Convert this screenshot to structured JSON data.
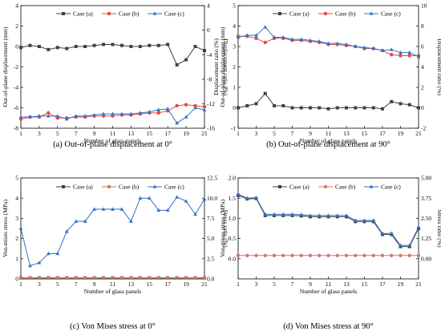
{
  "colors": {
    "case_a": "#404040",
    "case_b": "#e8473a",
    "case_c": "#3572c6",
    "case_b_panel_c": "#c8745a",
    "case_b_panel_d": "#d9776a"
  },
  "chart_data": [
    {
      "type": "line",
      "caption": "(a) Out-of-plane displacement at 0°",
      "xlabel": "Number of glass panels",
      "ylabel": "Out-of-plane displacement (mm)",
      "y2label": "Displacement ratio (%)",
      "xlim": [
        1,
        21
      ],
      "xticks": [
        "1",
        "3",
        "5",
        "7",
        "9",
        "11",
        "13",
        "15",
        "17",
        "19",
        "21"
      ],
      "ylim": [
        -8,
        4
      ],
      "yticks": [
        "-8",
        "-6",
        "-4",
        "-2",
        "0",
        "2",
        "4"
      ],
      "y2lim": [
        -16,
        4
      ],
      "y2ticks": [
        "-16",
        "-12",
        "-8",
        "-4",
        "0",
        "4"
      ],
      "legend": [
        "Case (a)",
        "Case (b)",
        "Case (c)"
      ],
      "x": [
        1,
        2,
        3,
        4,
        5,
        6,
        7,
        8,
        9,
        10,
        11,
        12,
        13,
        14,
        15,
        16,
        17,
        18,
        19,
        20,
        21
      ],
      "series": [
        {
          "name": "Case (a)",
          "values": [
            -0.1,
            0.1,
            0.0,
            -0.3,
            -0.1,
            -0.2,
            0.0,
            0.0,
            0.1,
            0.2,
            0.2,
            0.1,
            0.0,
            0.0,
            0.1,
            0.1,
            0.2,
            -1.8,
            -1.3,
            0.0,
            -0.4
          ]
        },
        {
          "name": "Case (b)",
          "values": [
            -7.1,
            -6.9,
            -6.9,
            -6.5,
            -7.0,
            -7.0,
            -6.9,
            -6.9,
            -6.8,
            -6.8,
            -6.8,
            -6.7,
            -6.7,
            -6.6,
            -6.5,
            -6.5,
            -6.3,
            -5.8,
            -5.7,
            -5.8,
            -5.9
          ]
        },
        {
          "name": "Case (c)",
          "values": [
            -6.9,
            -6.9,
            -6.8,
            -6.8,
            -6.8,
            -7.1,
            -6.8,
            -6.8,
            -6.7,
            -6.6,
            -6.6,
            -6.6,
            -6.6,
            -6.5,
            -6.4,
            -6.2,
            -6.1,
            -7.5,
            -6.9,
            -6.0,
            -6.2
          ]
        }
      ]
    },
    {
      "type": "line",
      "caption": "(b) Out-of-plane displacement at 90°",
      "xlabel": "Number of glass panels",
      "ylabel": "Displacement ratio (%)\nOut-of-plane displacement (mm)",
      "y2label": "Displacement ratio (%)",
      "xlim": [
        1,
        21
      ],
      "xticks": [
        "1",
        "3",
        "5",
        "7",
        "9",
        "11",
        "13",
        "15",
        "17",
        "19",
        "21"
      ],
      "ylim": [
        -1,
        5
      ],
      "yticks": [
        "-1",
        "0",
        "1",
        "2",
        "3",
        "4",
        "5"
      ],
      "y2lim": [
        -2,
        10
      ],
      "y2ticks": [
        "-2",
        "0",
        "2",
        "4",
        "6",
        "8",
        "10"
      ],
      "legend": [
        "Case (a)",
        "Case (b)",
        "Case (c)"
      ],
      "x": [
        1,
        2,
        3,
        4,
        5,
        6,
        7,
        8,
        9,
        10,
        11,
        12,
        13,
        14,
        15,
        16,
        17,
        18,
        19,
        20,
        21
      ],
      "series": [
        {
          "name": "Case (a)",
          "values": [
            0.0,
            0.1,
            0.2,
            0.7,
            0.1,
            0.1,
            0.0,
            0.0,
            0.0,
            0.0,
            -0.05,
            0.0,
            0.0,
            0.0,
            0.0,
            0.0,
            -0.05,
            0.3,
            0.2,
            0.15,
            0.0
          ]
        },
        {
          "name": "Case (b)",
          "values": [
            3.5,
            3.5,
            3.4,
            3.2,
            3.4,
            3.4,
            3.3,
            3.3,
            3.25,
            3.2,
            3.1,
            3.1,
            3.05,
            3.0,
            2.9,
            2.9,
            2.8,
            2.6,
            2.55,
            2.55,
            2.55
          ]
        },
        {
          "name": "Case (c)",
          "values": [
            3.45,
            3.55,
            3.55,
            3.95,
            3.45,
            3.45,
            3.35,
            3.35,
            3.3,
            3.25,
            3.15,
            3.15,
            3.1,
            3.0,
            2.95,
            2.9,
            2.8,
            2.85,
            2.7,
            2.7,
            2.5
          ]
        }
      ]
    },
    {
      "type": "line",
      "caption": "(c) Von Mises stress at 0°",
      "xlabel": "Number of glass panels",
      "ylabel": "Von-mises stress (MPa)",
      "y2label": "Stress ratio (%)",
      "xlim": [
        1,
        21
      ],
      "xticks": [
        "1",
        "3",
        "5",
        "7",
        "9",
        "11",
        "13",
        "15",
        "17",
        "19",
        "21"
      ],
      "ylim": [
        0,
        5
      ],
      "yticks": [
        "0",
        "1",
        "2",
        "3",
        "4",
        "5"
      ],
      "y2lim": [
        0.0,
        12.5
      ],
      "y2ticks": [
        "0.0",
        "2.5",
        "5.0",
        "7.5",
        "10.0",
        "12.5"
      ],
      "legend": [
        "Case (a)",
        "Case (b)",
        "Case (c)"
      ],
      "x": [
        1,
        2,
        3,
        4,
        5,
        6,
        7,
        8,
        9,
        10,
        11,
        12,
        13,
        14,
        15,
        16,
        17,
        18,
        19,
        20,
        21
      ],
      "series": [
        {
          "name": "Case (a)",
          "values": [
            0.05,
            0.05,
            0.05,
            0.05,
            0.05,
            0.05,
            0.05,
            0.05,
            0.05,
            0.05,
            0.05,
            0.05,
            0.05,
            0.05,
            0.05,
            0.05,
            0.05,
            0.05,
            0.05,
            0.05,
            0.05
          ]
        },
        {
          "name": "Case (b)",
          "values": [
            0.05,
            0.05,
            0.05,
            0.05,
            0.05,
            0.05,
            0.05,
            0.05,
            0.05,
            0.05,
            0.05,
            0.05,
            0.05,
            0.05,
            0.05,
            0.05,
            0.05,
            0.05,
            0.05,
            0.05,
            0.05
          ]
        },
        {
          "name": "Case (c)",
          "values": [
            2.5,
            0.65,
            0.8,
            1.25,
            1.25,
            2.35,
            2.85,
            2.85,
            3.45,
            3.45,
            3.45,
            3.45,
            2.85,
            4.0,
            4.0,
            3.4,
            3.4,
            4.05,
            3.85,
            3.2,
            3.95
          ]
        }
      ]
    },
    {
      "type": "line",
      "caption": "(d) Von Mises stress at 90°",
      "xlabel": "Number of glass panels",
      "ylabel": "Von-mises stress (MPa)",
      "y2label": "Stress ratio (%)",
      "xlim": [
        1,
        21
      ],
      "xticks": [
        "1",
        "3",
        "5",
        "7",
        "9",
        "11",
        "13",
        "15",
        "17",
        "19",
        "21"
      ],
      "ylim": [
        -0.5,
        2.0
      ],
      "yticks": [
        "0.0",
        "0.5",
        "1.0",
        "1.5",
        "2.0"
      ],
      "y2lim": [
        -1.25,
        5.0
      ],
      "y2ticks": [
        "0.00",
        "1.25",
        "2.50",
        "3.75",
        "5.00"
      ],
      "legend": [
        "Case (a)",
        "Case (b)",
        "Case (c)"
      ],
      "x": [
        1,
        2,
        3,
        4,
        5,
        6,
        7,
        8,
        9,
        10,
        11,
        12,
        13,
        14,
        15,
        16,
        17,
        18,
        19,
        20,
        21
      ],
      "series": [
        {
          "name": "Case (a)",
          "values": [
            1.57,
            1.48,
            1.49,
            1.07,
            1.07,
            1.07,
            1.07,
            1.06,
            1.04,
            1.04,
            1.04,
            1.04,
            1.04,
            0.92,
            0.92,
            0.92,
            0.6,
            0.6,
            0.3,
            0.3,
            0.75
          ]
        },
        {
          "name": "Case (b)",
          "values": [
            0.08,
            0.08,
            0.08,
            0.08,
            0.08,
            0.08,
            0.08,
            0.08,
            0.08,
            0.08,
            0.08,
            0.08,
            0.08,
            0.08,
            0.08,
            0.08,
            0.08,
            0.08,
            0.08,
            0.08,
            0.08
          ]
        },
        {
          "name": "Case (c)",
          "values": [
            1.6,
            1.5,
            1.51,
            1.1,
            1.1,
            1.1,
            1.1,
            1.09,
            1.07,
            1.07,
            1.07,
            1.07,
            1.07,
            0.95,
            0.95,
            0.95,
            0.62,
            0.63,
            0.33,
            0.33,
            0.78
          ]
        }
      ]
    }
  ]
}
